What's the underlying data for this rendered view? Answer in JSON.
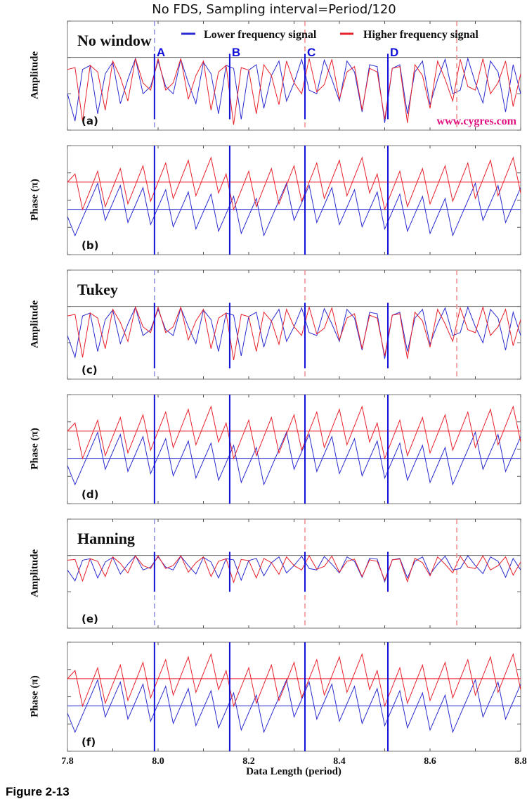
{
  "chart_data": {
    "type": "line",
    "title": "No FDS, Sampling interval=Period/120",
    "xlabel": "Data Length (period)",
    "xlim": [
      7.8,
      8.8
    ],
    "x_ticks": [
      "7.8",
      "8.0",
      "8.2",
      "8.4",
      "8.6",
      "8.8"
    ],
    "x_start": 7.8,
    "x_step": 0.016667,
    "legend": {
      "placement": "top-center of panel (a)",
      "entries": [
        {
          "name": "Lower frequency signal",
          "color": "#2b2bd0"
        },
        {
          "name": "Higher frequency signal",
          "color": "#e8202a"
        }
      ]
    },
    "markers": [
      {
        "label": "A",
        "x": 7.992
      },
      {
        "label": "B",
        "x": 8.158
      },
      {
        "label": "C",
        "x": 8.324
      },
      {
        "label": "D",
        "x": 8.507
      }
    ],
    "dashed_blue_x": 7.992,
    "dashed_red_x": [
      8.324,
      8.659
    ],
    "watermark": "www.cygres.com",
    "figure_caption": "Figure 2-13",
    "amplitude_axis": {
      "ylabel": "Amplitude",
      "ylim": [
        0.3,
        0.6
      ],
      "ticks": [
        "0.6",
        "0.5",
        "0.4",
        "0.3"
      ],
      "ref": 0.5
    },
    "phase_axis": {
      "ylabel": "Phase (π)",
      "ylim": [
        -1.0,
        1.0
      ],
      "ticks": [
        "1.0",
        "0.5",
        "0.0",
        "−0.5",
        "−1.0"
      ],
      "ref_lower": -0.17,
      "ref_higher": 0.33
    },
    "panels": [
      {
        "id": "(a)",
        "kind": "amplitude",
        "window": "No window",
        "marker_range": [
          0.33,
          0.51
        ],
        "lower": [
          0.4,
          0.325,
          0.467,
          0.478,
          0.345,
          0.455,
          0.487,
          0.373,
          0.44,
          0.497,
          0.4,
          0.42,
          0.49,
          0.42,
          0.4,
          0.495,
          0.43,
          0.373,
          0.487,
          0.455,
          0.345,
          0.478,
          0.47,
          0.33,
          0.465,
          0.48,
          0.36,
          0.45,
          0.49,
          0.38,
          0.43,
          0.495,
          0.41,
          0.4,
          0.493,
          0.44,
          0.38,
          0.49,
          0.46,
          0.35,
          0.48,
          0.475,
          0.32,
          0.47,
          0.48,
          0.345,
          0.46,
          0.49,
          0.37,
          0.44,
          0.495,
          0.4,
          0.41,
          0.497,
          0.43,
          0.375,
          0.49,
          0.46,
          0.35,
          0.48,
          0.4
        ],
        "higher": [
          0.467,
          0.472,
          0.325,
          0.478,
          0.46,
          0.355,
          0.49,
          0.445,
          0.38,
          0.497,
          0.43,
          0.41,
          0.497,
          0.41,
          0.43,
          0.497,
          0.385,
          0.45,
          0.49,
          0.355,
          0.46,
          0.478,
          0.315,
          0.472,
          0.465,
          0.345,
          0.48,
          0.45,
          0.37,
          0.49,
          0.43,
          0.4,
          0.497,
          0.405,
          0.425,
          0.495,
          0.385,
          0.46,
          0.475,
          0.355,
          0.47,
          0.46,
          0.33,
          0.47,
          0.475,
          0.32,
          0.48,
          0.45,
          0.36,
          0.49,
          0.44,
          0.38,
          0.495,
          0.42,
          0.41,
          0.497,
          0.4,
          0.43,
          0.49,
          0.365,
          0.455
        ]
      },
      {
        "id": "(b)",
        "kind": "phase"
      },
      {
        "id": "(c)",
        "kind": "amplitude",
        "window": "Tukey",
        "marker_range": [
          0.33,
          0.51
        ],
        "lower": [
          0.42,
          0.36,
          0.474,
          0.482,
          0.376,
          0.464,
          0.49,
          0.398,
          0.452,
          0.498,
          0.42,
          0.436,
          0.492,
          0.436,
          0.42,
          0.496,
          0.444,
          0.398,
          0.49,
          0.464,
          0.376,
          0.482,
          0.476,
          0.364,
          0.472,
          0.484,
          0.388,
          0.46,
          0.492,
          0.404,
          0.444,
          0.496,
          0.428,
          0.42,
          0.494,
          0.452,
          0.404,
          0.492,
          0.468,
          0.38,
          0.484,
          0.48,
          0.356,
          0.476,
          0.484,
          0.376,
          0.468,
          0.492,
          0.396,
          0.452,
          0.496,
          0.42,
          0.428,
          0.498,
          0.444,
          0.4,
          0.492,
          0.468,
          0.38,
          0.484,
          0.42
        ],
        "higher": [
          0.474,
          0.478,
          0.36,
          0.482,
          0.468,
          0.384,
          0.492,
          0.456,
          0.404,
          0.498,
          0.444,
          0.428,
          0.498,
          0.428,
          0.444,
          0.498,
          0.408,
          0.46,
          0.492,
          0.384,
          0.468,
          0.482,
          0.352,
          0.478,
          0.472,
          0.376,
          0.484,
          0.46,
          0.396,
          0.492,
          0.444,
          0.42,
          0.498,
          0.424,
          0.44,
          0.496,
          0.408,
          0.468,
          0.48,
          0.384,
          0.476,
          0.468,
          0.364,
          0.476,
          0.48,
          0.356,
          0.484,
          0.46,
          0.388,
          0.492,
          0.452,
          0.404,
          0.496,
          0.436,
          0.428,
          0.498,
          0.42,
          0.444,
          0.492,
          0.392,
          0.464
        ]
      },
      {
        "id": "(d)",
        "kind": "phase"
      },
      {
        "id": "(e)",
        "kind": "amplitude",
        "window": "Hanning",
        "marker_range": [
          0.4,
          0.51
        ],
        "lower": [
          0.46,
          0.43,
          0.487,
          0.491,
          0.438,
          0.482,
          0.495,
          0.449,
          0.476,
          0.499,
          0.46,
          0.468,
          0.496,
          0.468,
          0.46,
          0.498,
          0.472,
          0.449,
          0.495,
          0.482,
          0.438,
          0.491,
          0.488,
          0.432,
          0.486,
          0.492,
          0.444,
          0.48,
          0.496,
          0.452,
          0.472,
          0.498,
          0.464,
          0.46,
          0.497,
          0.476,
          0.452,
          0.496,
          0.484,
          0.44,
          0.492,
          0.49,
          0.428,
          0.488,
          0.492,
          0.438,
          0.484,
          0.496,
          0.448,
          0.476,
          0.498,
          0.46,
          0.464,
          0.499,
          0.472,
          0.45,
          0.496,
          0.484,
          0.44,
          0.492,
          0.46
        ],
        "higher": [
          0.487,
          0.489,
          0.43,
          0.491,
          0.484,
          0.442,
          0.496,
          0.478,
          0.452,
          0.499,
          0.472,
          0.464,
          0.499,
          0.464,
          0.472,
          0.499,
          0.454,
          0.48,
          0.496,
          0.442,
          0.484,
          0.491,
          0.426,
          0.489,
          0.486,
          0.438,
          0.492,
          0.48,
          0.448,
          0.496,
          0.472,
          0.46,
          0.499,
          0.462,
          0.47,
          0.498,
          0.454,
          0.484,
          0.49,
          0.442,
          0.488,
          0.484,
          0.432,
          0.488,
          0.49,
          0.428,
          0.492,
          0.48,
          0.444,
          0.496,
          0.476,
          0.452,
          0.498,
          0.468,
          0.464,
          0.499,
          0.46,
          0.472,
          0.496,
          0.446,
          0.482
        ]
      },
      {
        "id": "(f)",
        "kind": "phase"
      }
    ],
    "phase_series": {
      "lower": [
        -0.3,
        -0.65,
        -0.33,
        -0.01,
        0.31,
        -0.37,
        -0.05,
        0.27,
        -0.41,
        -0.09,
        0.23,
        -0.45,
        -0.13,
        0.19,
        -0.49,
        -0.17,
        0.15,
        -0.53,
        -0.21,
        0.11,
        -0.57,
        -0.25,
        0.07,
        -0.61,
        -0.29,
        0.03,
        -0.65,
        -0.33,
        -0.01,
        0.31,
        -0.37,
        -0.05,
        0.27,
        -0.41,
        -0.09,
        0.23,
        -0.45,
        -0.13,
        0.19,
        -0.49,
        -0.17,
        0.15,
        -0.53,
        -0.21,
        0.11,
        -0.57,
        -0.25,
        0.07,
        -0.61,
        -0.29,
        0.03,
        -0.65,
        -0.33,
        -0.01,
        0.31,
        -0.37,
        -0.05,
        0.27,
        -0.41,
        -0.09,
        0.23
      ],
      "higher": [
        0.33,
        0.48,
        -0.17,
        0.18,
        0.53,
        -0.12,
        0.23,
        0.58,
        -0.07,
        0.28,
        0.63,
        -0.02,
        0.33,
        0.68,
        0.03,
        0.38,
        0.73,
        0.08,
        0.43,
        0.78,
        0.13,
        0.48,
        -0.17,
        0.18,
        0.53,
        -0.12,
        0.23,
        0.58,
        -0.07,
        0.28,
        0.63,
        -0.02,
        0.33,
        0.68,
        0.03,
        0.38,
        0.73,
        0.08,
        0.43,
        0.78,
        0.13,
        0.48,
        -0.17,
        0.18,
        0.53,
        -0.12,
        0.23,
        0.58,
        -0.07,
        0.28,
        0.63,
        -0.02,
        0.33,
        0.68,
        0.03,
        0.38,
        0.73,
        0.08,
        0.43,
        0.78,
        0.13
      ]
    },
    "colors": {
      "lower": "#2b2bd0",
      "higher": "#e8202a",
      "marker": "#1010d8",
      "watermark": "#e0117f",
      "caption": "#2a8b8c"
    }
  }
}
